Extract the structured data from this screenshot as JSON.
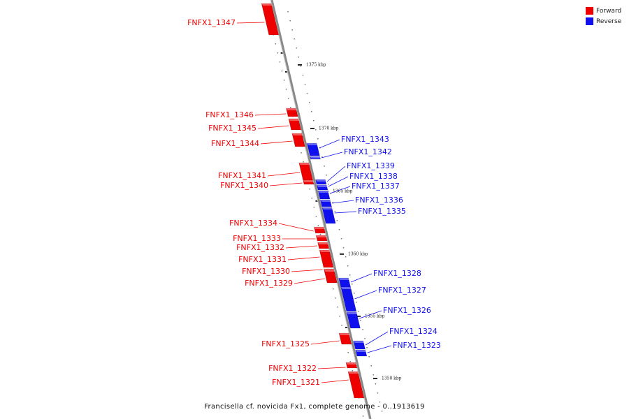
{
  "legend": [
    {
      "label": "Forward",
      "color": "#ee0000"
    },
    {
      "label": "Reverse",
      "color": "#1010ee"
    }
  ],
  "caption": "Francisella cf. novicida Fx1, complete genome - 0..1913619",
  "colors": {
    "forward": "#ee0000",
    "reverse": "#1010ee",
    "backbone": "#888888"
  },
  "kbp_marks": [
    "1375 kbp",
    "1370 kbp",
    "1365 kbp",
    "1360 kbp",
    "1355 kbp",
    "1350 kbp"
  ],
  "genes_forward": [
    "FNFX1_1347",
    "FNFX1_1346",
    "FNFX1_1345",
    "FNFX1_1344",
    "FNFX1_1341",
    "FNFX1_1340",
    "FNFX1_1334",
    "FNFX1_1333",
    "FNFX1_1332",
    "FNFX1_1331",
    "FNFX1_1330",
    "FNFX1_1329",
    "FNFX1_1325",
    "FNFX1_1322",
    "FNFX1_1321"
  ],
  "genes_reverse": [
    "FNFX1_1343",
    "FNFX1_1342",
    "FNFX1_1339",
    "FNFX1_1338",
    "FNFX1_1337",
    "FNFX1_1336",
    "FNFX1_1335",
    "FNFX1_1328",
    "FNFX1_1327",
    "FNFX1_1326",
    "FNFX1_1324",
    "FNFX1_1323"
  ]
}
